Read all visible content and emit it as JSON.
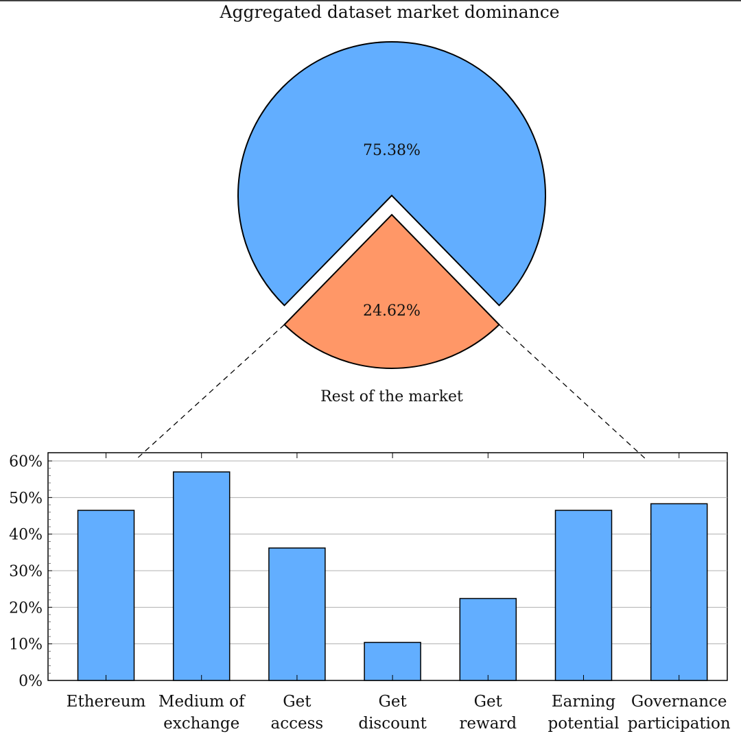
{
  "chart_data": [
    {
      "type": "pie",
      "title": "Aggregated dataset market dominance",
      "slices": [
        {
          "label": "",
          "value": 75.38,
          "display": "75.38%",
          "color": "#62aeff"
        },
        {
          "label": "Rest of the market",
          "value": 24.62,
          "display": "24.62%",
          "color": "#ff9767",
          "exploded": true
        }
      ]
    },
    {
      "type": "bar",
      "title": "",
      "categories": [
        [
          "Ethereum"
        ],
        [
          "Medium of",
          "exchange"
        ],
        [
          "Get",
          "access"
        ],
        [
          "Get",
          "discount"
        ],
        [
          "Get",
          "reward"
        ],
        [
          "Earning",
          "potential"
        ],
        [
          "Governance",
          "participation"
        ]
      ],
      "values": [
        46.5,
        57.0,
        36.2,
        10.4,
        22.4,
        46.5,
        48.3
      ],
      "color": "#62aeff",
      "ylim": [
        0,
        60
      ],
      "yticks": [
        0,
        10,
        20,
        30,
        40,
        50,
        60
      ],
      "yticklabels": [
        "0%",
        "10%",
        "20%",
        "30%",
        "40%",
        "50%",
        "60%"
      ],
      "grid": true,
      "xlabel": "",
      "ylabel": ""
    }
  ]
}
